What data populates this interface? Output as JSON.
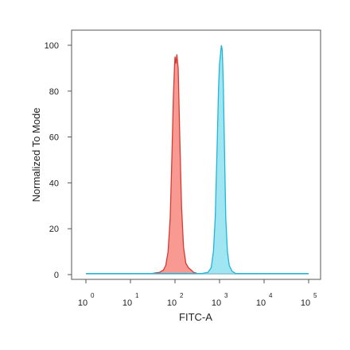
{
  "chart_data": {
    "type": "area",
    "xlabel": "FITC-A",
    "ylabel": "Normalized To Mode",
    "x_scale": "log",
    "xlim": [
      1,
      100000
    ],
    "ylim": [
      0,
      100
    ],
    "x_ticks": [
      {
        "value": 1,
        "base": "10",
        "exp": "0"
      },
      {
        "value": 10,
        "base": "10",
        "exp": "1"
      },
      {
        "value": 100,
        "base": "10",
        "exp": "2"
      },
      {
        "value": 1000,
        "base": "10",
        "exp": "3"
      },
      {
        "value": 10000,
        "base": "10",
        "exp": "4"
      },
      {
        "value": 100000,
        "base": "10",
        "exp": "5"
      }
    ],
    "y_ticks": [
      {
        "value": 0,
        "label": "0"
      },
      {
        "value": 20,
        "label": "20"
      },
      {
        "value": 40,
        "label": "40"
      },
      {
        "value": 60,
        "label": "60"
      },
      {
        "value": 80,
        "label": "80"
      },
      {
        "value": 100,
        "label": "100"
      }
    ],
    "grid": false,
    "series": [
      {
        "fill": "#f7877f",
        "stroke": "#d63b34",
        "points": [
          [
            1,
            0.5
          ],
          [
            30,
            0.5
          ],
          [
            45,
            1
          ],
          [
            55,
            2
          ],
          [
            62,
            4
          ],
          [
            70,
            10
          ],
          [
            78,
            25
          ],
          [
            85,
            50
          ],
          [
            92,
            78
          ],
          [
            97,
            90
          ],
          [
            100,
            95
          ],
          [
            105,
            92
          ],
          [
            110,
            96
          ],
          [
            118,
            90
          ],
          [
            128,
            60
          ],
          [
            140,
            30
          ],
          [
            155,
            12
          ],
          [
            175,
            5
          ],
          [
            200,
            3
          ],
          [
            230,
            2
          ],
          [
            260,
            1
          ],
          [
            320,
            0.5
          ],
          [
            100000,
            0.5
          ]
        ]
      },
      {
        "fill": "#8fe0f0",
        "stroke": "#1fb6d8",
        "points": [
          [
            1,
            0.5
          ],
          [
            400,
            0.5
          ],
          [
            550,
            1
          ],
          [
            650,
            3
          ],
          [
            730,
            10
          ],
          [
            800,
            25
          ],
          [
            880,
            55
          ],
          [
            950,
            82
          ],
          [
            1000,
            92
          ],
          [
            1050,
            96
          ],
          [
            1100,
            100
          ],
          [
            1150,
            98
          ],
          [
            1210,
            85
          ],
          [
            1290,
            55
          ],
          [
            1380,
            25
          ],
          [
            1500,
            10
          ],
          [
            1650,
            4
          ],
          [
            1900,
            1.5
          ],
          [
            2300,
            0.5
          ],
          [
            100000,
            0.5
          ]
        ]
      }
    ]
  }
}
